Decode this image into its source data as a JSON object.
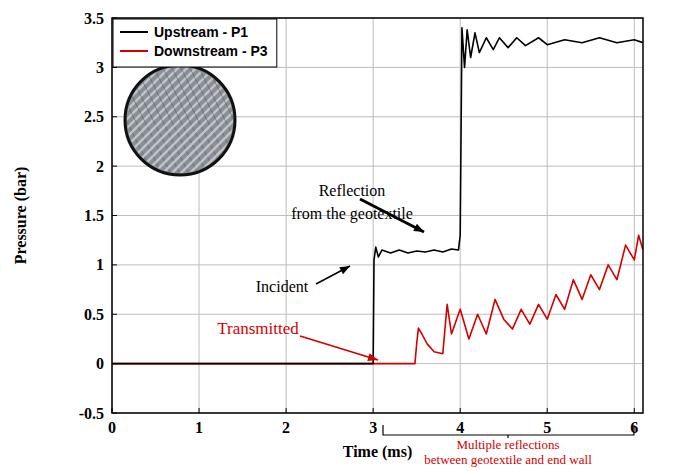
{
  "chart_data": {
    "type": "line",
    "x_label": "Time (ms)",
    "y_label": "Pressure (bar)",
    "xlim": [
      0,
      6.1
    ],
    "ylim": [
      -0.5,
      3.5
    ],
    "xticks": [
      0,
      1,
      2,
      3,
      4,
      5,
      6
    ],
    "yticks": [
      -0.5,
      0,
      0.5,
      1,
      1.5,
      2,
      2.5,
      3,
      3.5
    ],
    "grid": true,
    "legend": "upper left",
    "series": [
      {
        "name": "Upstream - P1",
        "color": "#000000",
        "x": [
          0,
          2.98,
          3.0,
          3.01,
          3.03,
          3.06,
          3.1,
          3.2,
          3.3,
          3.4,
          3.5,
          3.6,
          3.7,
          3.8,
          3.9,
          3.98,
          4.0,
          4.02,
          4.05,
          4.08,
          4.12,
          4.17,
          4.22,
          4.3,
          4.38,
          4.45,
          4.55,
          4.65,
          4.75,
          4.9,
          5.0,
          5.2,
          5.4,
          5.6,
          5.8,
          6.0,
          6.1
        ],
        "values": [
          0,
          0,
          0,
          1.05,
          1.18,
          1.08,
          1.15,
          1.12,
          1.15,
          1.12,
          1.14,
          1.13,
          1.15,
          1.13,
          1.16,
          1.15,
          1.3,
          3.4,
          3.0,
          3.38,
          3.1,
          3.35,
          3.15,
          3.3,
          3.18,
          3.3,
          3.2,
          3.3,
          3.22,
          3.3,
          3.23,
          3.28,
          3.25,
          3.3,
          3.25,
          3.28,
          3.25
        ]
      },
      {
        "name": "Downstream - P3",
        "color": "#d40000",
        "x": [
          0,
          3.48,
          3.5,
          3.52,
          3.56,
          3.62,
          3.7,
          3.8,
          3.85,
          3.9,
          4.0,
          4.1,
          4.2,
          4.3,
          4.4,
          4.5,
          4.6,
          4.7,
          4.8,
          4.9,
          5.0,
          5.1,
          5.2,
          5.3,
          5.4,
          5.5,
          5.6,
          5.7,
          5.8,
          5.9,
          6.0,
          6.05,
          6.1
        ],
        "values": [
          0,
          0,
          0.2,
          0.36,
          0.3,
          0.2,
          0.12,
          0.1,
          0.6,
          0.3,
          0.55,
          0.25,
          0.5,
          0.3,
          0.65,
          0.45,
          0.35,
          0.55,
          0.4,
          0.6,
          0.45,
          0.7,
          0.55,
          0.85,
          0.65,
          0.9,
          0.75,
          1.0,
          0.85,
          1.2,
          1.05,
          1.3,
          1.15
        ]
      }
    ],
    "annotations": [
      {
        "lines": [
          "Incident"
        ],
        "color": "#000000"
      },
      {
        "lines": [
          "Reflection",
          "from the geotextile"
        ],
        "color": "#000000"
      },
      {
        "lines": [
          "Transmitted"
        ],
        "color": "#d40000"
      },
      {
        "lines": [
          "Multiple reflections",
          "between geotextile and end wall"
        ],
        "color": "#d40000"
      }
    ]
  }
}
